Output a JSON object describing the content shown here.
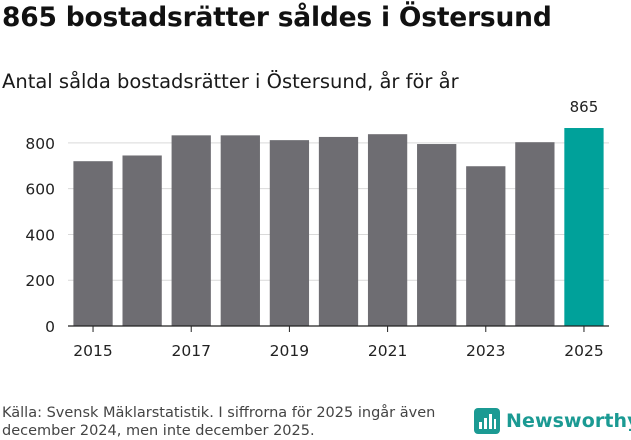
{
  "title": "865 bostadsrätter såldes i Östersund",
  "subtitle": "Antal sålda bostadsrätter i Östersund, år för år",
  "source": "Källa: Svensk Mäklarstatistik. I siffrorna för 2025 ingår även december 2024, men inte december 2025.",
  "brand": {
    "name": "Newsworthy",
    "color": "#1b9a93",
    "icon": "newsworthy-logo-icon"
  },
  "colors": {
    "bar": "#6e6d72",
    "highlight": "#00a19a",
    "grid": "#d9d9d9",
    "axis": "#222222"
  },
  "chart_data": {
    "type": "bar",
    "title": "Antal sålda bostadsrätter i Östersund, år för år",
    "categories": [
      "2015",
      "2016",
      "2017",
      "2018",
      "2019",
      "2020",
      "2021",
      "2022",
      "2023",
      "2024",
      "2025"
    ],
    "values": [
      720,
      745,
      833,
      833,
      812,
      826,
      838,
      795,
      698,
      803,
      865
    ],
    "x_tick_labels": [
      "2015",
      "2017",
      "2019",
      "2021",
      "2023",
      "2025"
    ],
    "y_ticks": [
      0,
      200,
      400,
      600,
      800
    ],
    "ylim": [
      0,
      900
    ],
    "highlight_index": 10,
    "highlight_label": "865",
    "xlabel": "",
    "ylabel": "",
    "grid": true
  }
}
